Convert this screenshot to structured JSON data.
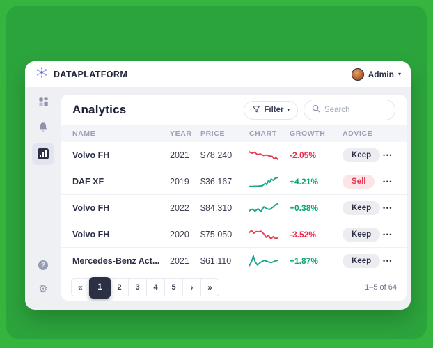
{
  "brand": {
    "name": "DATAPLATFORM"
  },
  "user": {
    "name": "Admin"
  },
  "sidebar": {
    "items": [
      {
        "name": "dashboard",
        "icon": "grid-icon",
        "active": false
      },
      {
        "name": "notifications",
        "icon": "bell-icon",
        "active": false
      },
      {
        "name": "analytics",
        "icon": "bar-chart-icon",
        "active": true
      },
      {
        "name": "help",
        "icon": "question-icon",
        "active": false
      },
      {
        "name": "settings",
        "icon": "gear-icon",
        "active": false
      }
    ]
  },
  "page": {
    "title": "Analytics"
  },
  "toolbar": {
    "filter_label": "Filter",
    "search_placeholder": "Search"
  },
  "table": {
    "columns": [
      "NAME",
      "YEAR",
      "PRICE",
      "CHART",
      "GROWTH",
      "ADVICE"
    ],
    "rows": [
      {
        "name": "Volvo FH",
        "year": "2021",
        "price": "$78.240",
        "growth": "-2.05%",
        "trend": "down",
        "advice": "Keep",
        "spark": [
          [
            0,
            25
          ],
          [
            10,
            35
          ],
          [
            18,
            28
          ],
          [
            28,
            45
          ],
          [
            38,
            40
          ],
          [
            48,
            52
          ],
          [
            58,
            48
          ],
          [
            68,
            55
          ],
          [
            78,
            58
          ],
          [
            85,
            75
          ],
          [
            92,
            68
          ],
          [
            100,
            85
          ]
        ]
      },
      {
        "name": "DAF XF",
        "year": "2019",
        "price": "$36.167",
        "growth": "+4.21%",
        "trend": "up",
        "advice": "Sell",
        "spark": [
          [
            0,
            85
          ],
          [
            15,
            84
          ],
          [
            30,
            83
          ],
          [
            45,
            80
          ],
          [
            55,
            62
          ],
          [
            60,
            72
          ],
          [
            65,
            45
          ],
          [
            70,
            55
          ],
          [
            75,
            30
          ],
          [
            82,
            40
          ],
          [
            90,
            22
          ],
          [
            100,
            20
          ]
        ]
      },
      {
        "name": "Volvo FH",
        "year": "2022",
        "price": "$84.310",
        "growth": "+0.38%",
        "trend": "up",
        "advice": "Keep",
        "spark": [
          [
            0,
            70
          ],
          [
            10,
            58
          ],
          [
            20,
            72
          ],
          [
            30,
            55
          ],
          [
            40,
            75
          ],
          [
            50,
            40
          ],
          [
            60,
            55
          ],
          [
            70,
            60
          ],
          [
            80,
            45
          ],
          [
            90,
            25
          ],
          [
            100,
            15
          ]
        ]
      },
      {
        "name": "Volvo FH",
        "year": "2020",
        "price": "$75.050",
        "growth": "-3.52%",
        "trend": "down",
        "advice": "Keep",
        "spark": [
          [
            0,
            35
          ],
          [
            8,
            20
          ],
          [
            16,
            40
          ],
          [
            24,
            28
          ],
          [
            32,
            30
          ],
          [
            40,
            25
          ],
          [
            50,
            45
          ],
          [
            58,
            70
          ],
          [
            66,
            55
          ],
          [
            74,
            82
          ],
          [
            82,
            65
          ],
          [
            90,
            80
          ],
          [
            100,
            72
          ]
        ]
      },
      {
        "name": "Mercedes-Benz Act...",
        "year": "2021",
        "price": "$61.110",
        "growth": "+1.87%",
        "trend": "up",
        "advice": "Keep",
        "spark": [
          [
            0,
            85
          ],
          [
            8,
            55
          ],
          [
            14,
            12
          ],
          [
            20,
            55
          ],
          [
            28,
            80
          ],
          [
            40,
            58
          ],
          [
            52,
            45
          ],
          [
            64,
            56
          ],
          [
            76,
            62
          ],
          [
            88,
            50
          ],
          [
            100,
            45
          ]
        ]
      }
    ]
  },
  "pagination": {
    "first_icon": "«",
    "next_icon": "›",
    "last_icon": "»",
    "pages": [
      "1",
      "2",
      "3",
      "4",
      "5"
    ],
    "active_page": "1",
    "range_label": "1–5 of 64"
  },
  "colors": {
    "background_outer": "#35b43e",
    "background_inner": "#2ca43c",
    "trend_up": "#17a689",
    "trend_down": "#ee3a52",
    "growth_up_text": "#0ca678",
    "growth_down_text": "#f0284a",
    "active_page_bg": "#2b3045",
    "brand_logo": "#5b5fd6"
  }
}
